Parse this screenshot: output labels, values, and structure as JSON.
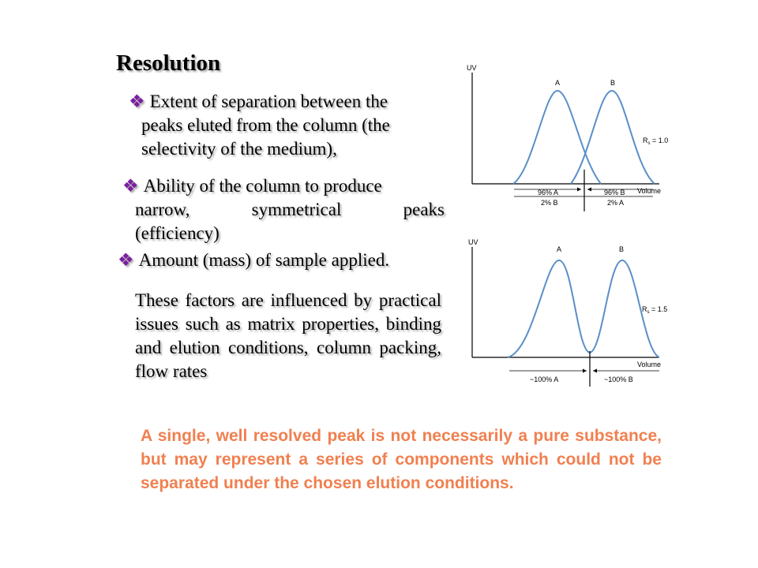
{
  "slide": {
    "title": "Resolution",
    "bullets": [
      {
        "diamond": "❖",
        "first": "Extent of separation between the",
        "lines": [
          "peaks eluted from the column (the",
          "selectivity of the medium),"
        ]
      },
      {
        "diamond": "❖",
        "first": "Ability of the column to produce",
        "lines": [
          "narrow, symmetrical peaks",
          "(efficiency)"
        ]
      },
      {
        "diamond": "❖",
        "first": "Amount (mass) of sample applied.",
        "lines": []
      }
    ],
    "paragraph": "These factors are influenced by practical issues such as matrix properties, binding and elution conditions, column packing, flow rates",
    "note": "A single, well resolved peak is not necessarily a pure substance, but may represent a series of components which could not be separated under the chosen elution conditions.",
    "colors": {
      "bullet_diamond": "#7a1fa0",
      "note_text": "#f08050",
      "curve": "#5a8fc8"
    }
  },
  "figures": [
    {
      "y_axis": "UV",
      "x_axis": "Volume",
      "peak_a": "A",
      "peak_b": "B",
      "rs_prefix": "R",
      "rs_sub": "s",
      "rs_value": " = 1.0",
      "left_top": "96% A",
      "left_bottom": "2% B",
      "right_top": "96% B",
      "right_bottom": "2% A"
    },
    {
      "y_axis": "UV",
      "x_axis": "Volume",
      "peak_a": "A",
      "peak_b": "B",
      "rs_prefix": "R",
      "rs_sub": "s",
      "rs_value": " = 1.5",
      "left_top": "~100% A",
      "right_top": "~100% B"
    }
  ]
}
